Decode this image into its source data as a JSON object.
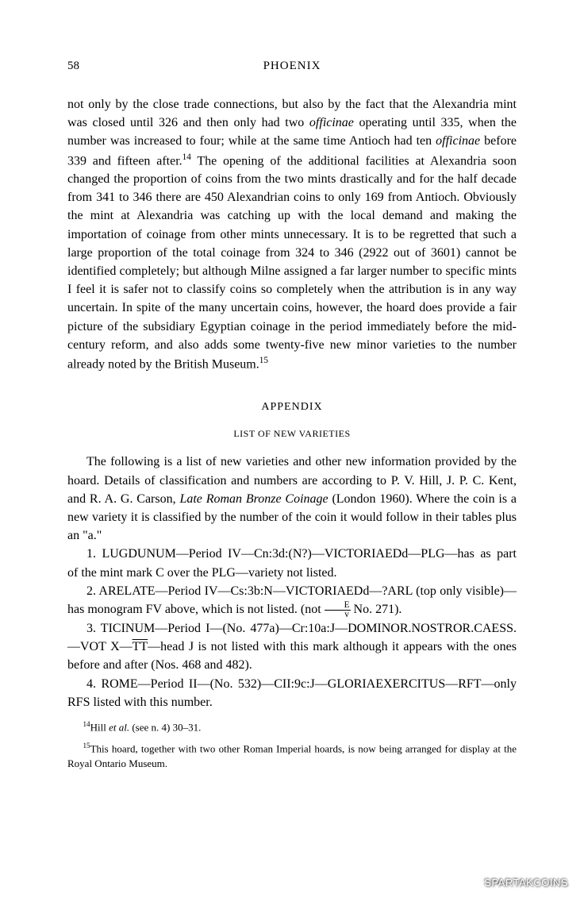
{
  "page": {
    "number": "58",
    "running_header": "PHOENIX"
  },
  "body": {
    "text_part1": "not only by the close trade connections, but also by the fact that the Alexandria mint was closed until 326 and then only had two ",
    "text_italic1": "officinae",
    "text_part2": " operating until 335, when the number was increased to four; while at the same time Antioch had ten ",
    "text_italic2": "officinae",
    "text_part3": " before 339 and fifteen after.",
    "fn14_marker": "14",
    "text_part4": " The opening of the additional facilities at Alexandria soon changed the proportion of coins from the two mints drastically and for the half decade from 341 to 346 there are 450 Alexandrian coins to only 169 from Antioch. Obviously the mint at Alexandria was catching up with the local demand and making the importation of coinage from other mints unnecessary. It is to be regretted that such a large proportion of the total coinage from 324 to 346 (2922 out of 3601) cannot be identified completely; but although Milne assigned a far larger number to specific mints I feel it is safer not to classify coins so completely when the attribution is in any way uncertain. In spite of the many uncertain coins, however, the hoard does provide a fair picture of the subsidiary Egyptian coinage in the period immediately before the mid-century reform, and also adds some twenty-five new minor varieties to the number already noted by the British Museum.",
    "fn15_marker": "15"
  },
  "appendix": {
    "header": "APPENDIX",
    "subheader": "LIST OF NEW VARIETIES",
    "intro_part1": "The following is a list of new varieties and other new information provided by the hoard. Details of classification and numbers are according to P. V. Hill, J. P. C. Kent, and R. A. G. Carson, ",
    "intro_italic": "Late Roman Bronze Coinage",
    "intro_part2": " (London 1960). Where the coin is a new variety it is classified by the number of the coin it would follow in their tables plus an \"a.\"",
    "entry1": "1. LUGDUNUM—Period IV—Cn:3d:(N?)—VICTORIAEDd—PLG—has as part of the mint mark C over the PLG—variety not listed.",
    "entry2_part1": "2. ARELATE—Period IV—Cs:3b:N—VICTORIAEDd—?ARL (top only visible)—has monogram FV above, which is not listed. (not ",
    "entry2_frac_top": "E",
    "entry2_frac_bottom": "v",
    "entry2_part2": " No. 271).",
    "entry3_part1": "3. TICINUM—Period I—(No. 477a)—Cr:10a:J—DOMINOR.NOSTROR.CAESS.—VOT X—",
    "entry3_overline": "TT",
    "entry3_part2": "—head J is not listed with this mark although it appears with the ones before and after (Nos. 468 and 482).",
    "entry4": "4. ROME—Period II—(No. 532)—CII:9c:J—GLORIAEXERCITUS—RFT—only RFS listed with this number."
  },
  "footnotes": {
    "fn14_marker": "14",
    "fn14_part1": "Hill ",
    "fn14_italic": "et al.",
    "fn14_part2": " (see n. 4) 30–31.",
    "fn15_marker": "15",
    "fn15_text": "This hoard, together with two other Roman Imperial hoards, is now being arranged for display at the Royal Ontario Museum."
  },
  "watermark": "SPARTAKCOINS"
}
